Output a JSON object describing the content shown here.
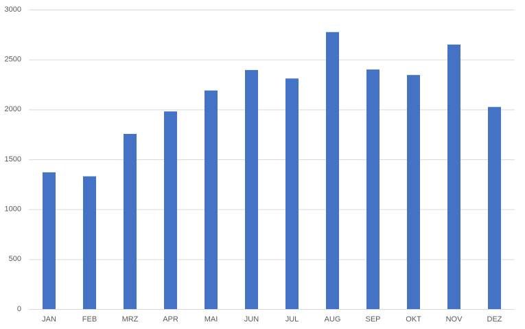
{
  "chart_data": {
    "type": "bar",
    "categories": [
      "JAN",
      "FEB",
      "MRZ",
      "APR",
      "MAI",
      "JUN",
      "JUL",
      "AUG",
      "SEP",
      "OKT",
      "NOV",
      "DEZ"
    ],
    "values": [
      1370,
      1330,
      1755,
      1980,
      2190,
      2395,
      2310,
      2775,
      2400,
      2345,
      2650,
      2025
    ],
    "color": "#4472c4",
    "ylim": [
      0,
      3000
    ],
    "yticks": [
      0,
      500,
      1000,
      1500,
      2000,
      2500,
      3000
    ],
    "grid": true
  }
}
